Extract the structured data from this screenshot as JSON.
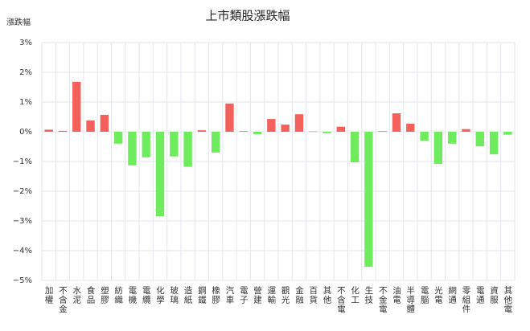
{
  "chart_data": {
    "type": "bar",
    "title": "上市類股漲跌幅",
    "y_label": "漲跌幅",
    "categories": [
      "加權",
      "不含金",
      "水泥",
      "食品",
      "塑膠",
      "紡織",
      "電機",
      "電纜",
      "化學",
      "玻璃",
      "造紙",
      "鋼鐵",
      "橡膠",
      "汽車",
      "電子",
      "營建",
      "運輸",
      "觀光",
      "金融",
      "百貨",
      "其他",
      "不含電",
      "化工",
      "生技",
      "不金電",
      "油電",
      "半導體",
      "電腦",
      "光電",
      "網通",
      "零組件",
      "電通",
      "資服",
      "其他電"
    ],
    "values": [
      0.07,
      0.03,
      1.68,
      0.38,
      0.57,
      -0.4,
      -1.13,
      -0.86,
      -2.84,
      -0.83,
      -1.18,
      0.05,
      -0.7,
      0.95,
      0.02,
      -0.08,
      0.43,
      0.24,
      0.59,
      0.01,
      -0.05,
      0.17,
      -1.03,
      -4.54,
      0.02,
      0.62,
      0.27,
      -0.3,
      -1.08,
      -0.4,
      0.09,
      -0.49,
      -0.76,
      -0.1
    ],
    "up_color": "#f4615b",
    "down_color": "#6fec5e",
    "ylim": [
      -5,
      3
    ],
    "yticks": [
      {
        "value": -5,
        "label": "−5%"
      },
      {
        "value": -4,
        "label": "−4%"
      },
      {
        "value": -3,
        "label": "−3%"
      },
      {
        "value": -2,
        "label": "−2%"
      },
      {
        "value": -1,
        "label": "−1%"
      },
      {
        "value": 0,
        "label": "0%"
      },
      {
        "value": 1,
        "label": "1%"
      },
      {
        "value": 2,
        "label": "2%"
      },
      {
        "value": 3,
        "label": "3%"
      }
    ],
    "grid": true
  }
}
